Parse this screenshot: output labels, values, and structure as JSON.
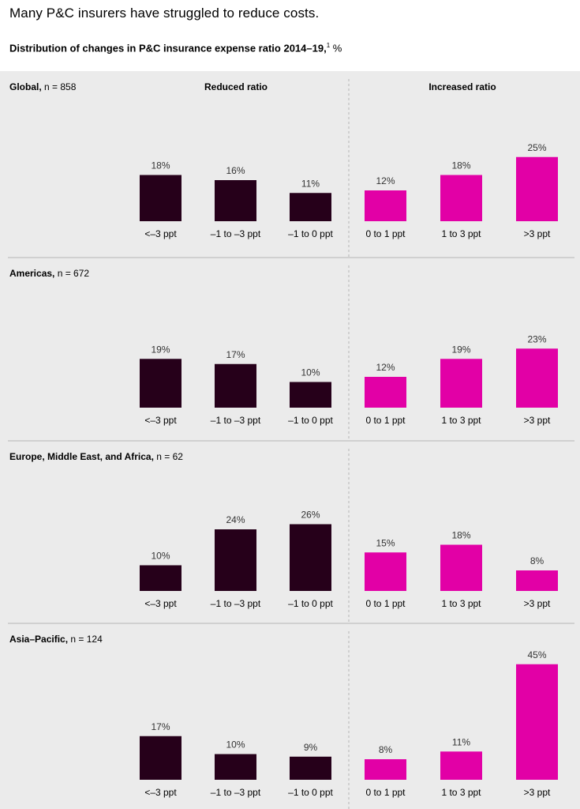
{
  "title": "Many P&C insurers have struggled to reduce costs.",
  "subtitle": "Distribution of changes in P&C insurance expense ratio 2014–19,",
  "subtitle_sup": "1",
  "subtitle_unit": "%",
  "group_labels": [
    "Reduced ratio",
    "Increased ratio"
  ],
  "colors": {
    "reduced": "#26001a",
    "increased": "#e200a6",
    "panel_bg": "#ebebeb",
    "divider": "#b5b5b5"
  },
  "chart_data": {
    "type": "bar",
    "categories": [
      "<–3 ppt",
      "–1 to –3 ppt",
      "–1 to 0 ppt",
      "0 to 1 ppt",
      "1 to 3 ppt",
      ">3 ppt"
    ],
    "category_group": [
      "reduced",
      "reduced",
      "reduced",
      "increased",
      "increased",
      "increased"
    ],
    "ylim": [
      0,
      45
    ],
    "series": [
      {
        "name": "Global",
        "n_label": "n = 858",
        "values": [
          18,
          16,
          11,
          12,
          18,
          25
        ]
      },
      {
        "name": "Americas",
        "n_label": "n = 672",
        "values": [
          19,
          17,
          10,
          12,
          19,
          23
        ]
      },
      {
        "name": "Europe, Middle East, and Africa",
        "n_label": "n = 62",
        "values": [
          10,
          24,
          26,
          15,
          18,
          8
        ]
      },
      {
        "name": "Asia–Pacific",
        "n_label": "n = 124",
        "values": [
          17,
          10,
          9,
          8,
          11,
          45
        ]
      }
    ]
  }
}
